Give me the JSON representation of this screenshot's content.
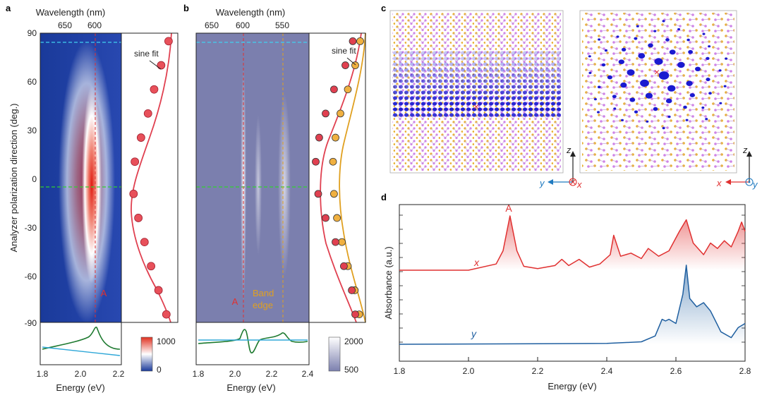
{
  "panels": {
    "a": {
      "label": "a",
      "top_axis_label": "Wavelength (nm)",
      "top_ticks": [
        "650",
        "600"
      ],
      "left_axis_label": "Analyzer polarization direction (deg.)",
      "y_ticks": [
        "90",
        "60",
        "30",
        "0",
        "-30",
        "-60",
        "-90"
      ],
      "x_ticks": [
        "1.8",
        "2.0",
        "2.2"
      ],
      "x_label": "Energy (eV)",
      "fit_label": "sine fit",
      "peak_label": "A",
      "colorbar": {
        "max": "1000",
        "min": "0",
        "colors": [
          "#1a3a9a",
          "#ffffff",
          "#e03020"
        ]
      }
    },
    "b": {
      "label": "b",
      "top_axis_label": "Wavelength (nm)",
      "top_ticks": [
        "650",
        "600",
        "550"
      ],
      "x_ticks": [
        "1.8",
        "2.0",
        "2.2",
        "2.4"
      ],
      "x_label": "Energy (eV)",
      "fit_label": "sine fit",
      "peak_label": "A",
      "band_edge_line1": "Band",
      "band_edge_line2": "edge",
      "colorbar": {
        "max": "2000",
        "min": "500",
        "colors": [
          "#7b7fae",
          "#ffffff"
        ]
      }
    },
    "c": {
      "label": "c",
      "left_axes": {
        "z": "z",
        "y": "y",
        "x": "x"
      },
      "right_axes": {
        "z": "z",
        "x": "x",
        "y": "y"
      }
    },
    "d": {
      "label": "d",
      "y_label": "Absorbance (a.u.)",
      "x_label": "Energy (eV)",
      "x_ticks": [
        "1.8",
        "2.0",
        "2.2",
        "2.4",
        "2.6",
        "2.8"
      ],
      "peak_label": "A",
      "series_x_label": "x",
      "series_y_label": "y"
    }
  },
  "chart_data": [
    {
      "type": "heatmap",
      "panel": "a",
      "xlabel": "Energy (eV)",
      "ylabel": "Analyzer polarization direction (deg.)",
      "xlim": [
        1.8,
        2.2
      ],
      "ylim": [
        -90,
        90
      ],
      "peak_energy_eV": 2.06,
      "colorbar_range": [
        0,
        1000
      ],
      "fit_points": {
        "angle": [
          85,
          70,
          55,
          40,
          25,
          10,
          -10,
          -25,
          -40,
          -55,
          -70,
          -85
        ],
        "intensity": [
          0.95,
          0.78,
          0.62,
          0.48,
          0.32,
          0.18,
          0.15,
          0.26,
          0.4,
          0.55,
          0.72,
          0.9
        ]
      }
    },
    {
      "type": "heatmap",
      "panel": "b",
      "xlabel": "Energy (eV)",
      "xlim": [
        1.8,
        2.4
      ],
      "ylim": [
        -90,
        90
      ],
      "peak_energy_eV": 2.06,
      "band_edge_eV": 2.26,
      "colorbar_range": [
        500,
        2000
      ],
      "fit_points_A": {
        "angle": [
          85,
          70,
          55,
          40,
          25,
          10,
          -10,
          -25,
          -40,
          -55,
          -70,
          -85
        ],
        "intensity": [
          0.8,
          0.65,
          0.42,
          0.25,
          0.12,
          0.05,
          0.1,
          0.25,
          0.45,
          0.62,
          0.78,
          0.85
        ]
      },
      "fit_points_band": {
        "angle": [
          85,
          70,
          55,
          40,
          25,
          10,
          -10,
          -25,
          -40,
          -55,
          -70,
          -85
        ],
        "intensity": [
          0.95,
          0.85,
          0.7,
          0.55,
          0.45,
          0.4,
          0.42,
          0.48,
          0.58,
          0.7,
          0.84,
          0.93
        ]
      }
    },
    {
      "type": "line",
      "panel": "d",
      "title": "",
      "xlabel": "Energy (eV)",
      "ylabel": "Absorbance (a.u.)",
      "xlim": [
        1.8,
        2.8
      ],
      "series": [
        {
          "name": "x",
          "color": "#e03030",
          "x": [
            1.8,
            2.0,
            2.08,
            2.1,
            2.12,
            2.14,
            2.16,
            2.2,
            2.25,
            2.27,
            2.29,
            2.32,
            2.35,
            2.38,
            2.41,
            2.42,
            2.44,
            2.47,
            2.5,
            2.52,
            2.55,
            2.58,
            2.61,
            2.63,
            2.65,
            2.68,
            2.7,
            2.72,
            2.74,
            2.76,
            2.78,
            2.79,
            2.8
          ],
          "y": [
            0.0,
            0.0,
            0.08,
            0.25,
            0.7,
            0.25,
            0.05,
            0.02,
            0.06,
            0.14,
            0.06,
            0.14,
            0.04,
            0.08,
            0.2,
            0.45,
            0.18,
            0.22,
            0.15,
            0.28,
            0.18,
            0.25,
            0.5,
            0.65,
            0.35,
            0.2,
            0.35,
            0.28,
            0.38,
            0.3,
            0.5,
            0.62,
            0.5
          ]
        },
        {
          "name": "y",
          "color": "#1f5fa0",
          "x": [
            1.8,
            2.4,
            2.5,
            2.54,
            2.56,
            2.57,
            2.58,
            2.6,
            2.62,
            2.63,
            2.64,
            2.66,
            2.68,
            2.7,
            2.73,
            2.76,
            2.78,
            2.8
          ],
          "y": [
            0.0,
            0.01,
            0.03,
            0.1,
            0.3,
            0.28,
            0.3,
            0.25,
            0.6,
            0.95,
            0.55,
            0.45,
            0.5,
            0.4,
            0.15,
            0.08,
            0.2,
            0.25
          ]
        }
      ]
    }
  ]
}
